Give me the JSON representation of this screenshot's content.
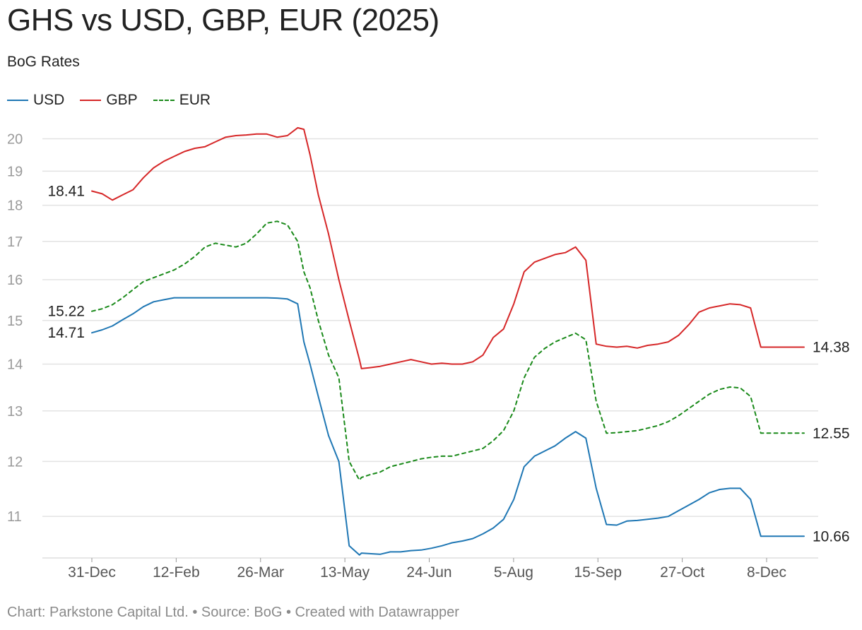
{
  "title": "GHS vs USD, GBP, EUR (2025)",
  "subtitle": "BoG Rates",
  "footer": "Chart: Parkstone Capital Ltd. • Source: BoG • Created with Datawrapper",
  "chart_data": {
    "type": "line",
    "title": "GHS vs USD, GBP, EUR (2025)",
    "subtitle": "BoG Rates",
    "xlabel": "",
    "ylabel": "",
    "y_scale": "log",
    "ylim": [
      10.3,
      20.6
    ],
    "y_ticks": [
      11,
      12,
      13,
      14,
      15,
      16,
      17,
      18,
      19,
      20
    ],
    "x_ticks": [
      "31-Dec",
      "12-Feb",
      "26-Mar",
      "13-May",
      "24-Jun",
      "5-Aug",
      "15-Sep",
      "27-Oct",
      "8-Dec"
    ],
    "grid": true,
    "legend_position": "top-left",
    "x_days_from_first": [
      0,
      5,
      10,
      15,
      20,
      25,
      30,
      35,
      40,
      45,
      50,
      55,
      60,
      65,
      70,
      75,
      80,
      85,
      90,
      95,
      100,
      103,
      106,
      110,
      115,
      120,
      125,
      130,
      131,
      135,
      140,
      145,
      150,
      155,
      160,
      165,
      170,
      175,
      180,
      185,
      190,
      195,
      200,
      205,
      210,
      215,
      220,
      225,
      230,
      235,
      240,
      245,
      250,
      255,
      260,
      265,
      270,
      275,
      280,
      285,
      290,
      295,
      300,
      305,
      310,
      315,
      320,
      325,
      330,
      335,
      340,
      345,
      346
    ],
    "series": [
      {
        "name": "USD",
        "color": "#1f77b4",
        "dash": false,
        "values": [
          14.71,
          14.78,
          14.87,
          15.02,
          15.16,
          15.33,
          15.45,
          15.5,
          15.55,
          15.55,
          15.55,
          15.55,
          15.55,
          15.55,
          15.55,
          15.55,
          15.55,
          15.55,
          15.54,
          15.52,
          15.4,
          14.5,
          14.0,
          13.3,
          12.5,
          12.0,
          10.5,
          10.35,
          10.38,
          10.37,
          10.36,
          10.4,
          10.4,
          10.42,
          10.43,
          10.46,
          10.5,
          10.55,
          10.58,
          10.62,
          10.7,
          10.8,
          10.95,
          11.3,
          11.9,
          12.1,
          12.2,
          12.3,
          12.45,
          12.58,
          12.45,
          11.5,
          10.86,
          10.85,
          10.92,
          10.93,
          10.95,
          10.97,
          11.0,
          11.1,
          11.2,
          11.3,
          11.42,
          11.48,
          11.5,
          11.5,
          11.3,
          10.66,
          10.66,
          10.66,
          10.66,
          10.66,
          10.66
        ]
      },
      {
        "name": "GBP",
        "color": "#d62728",
        "dash": false,
        "values": [
          18.41,
          18.33,
          18.15,
          18.3,
          18.45,
          18.8,
          19.1,
          19.3,
          19.45,
          19.6,
          19.7,
          19.75,
          19.9,
          20.05,
          20.1,
          20.12,
          20.15,
          20.15,
          20.05,
          20.1,
          20.35,
          20.3,
          19.5,
          18.3,
          17.2,
          16.0,
          15.0,
          14.1,
          13.9,
          13.92,
          13.95,
          14.0,
          14.05,
          14.1,
          14.05,
          14.0,
          14.02,
          14.0,
          14.0,
          14.05,
          14.2,
          14.6,
          14.8,
          15.4,
          16.2,
          16.45,
          16.55,
          16.65,
          16.7,
          16.85,
          16.5,
          14.45,
          14.4,
          14.38,
          14.4,
          14.36,
          14.42,
          14.45,
          14.5,
          14.65,
          14.9,
          15.2,
          15.3,
          15.35,
          15.4,
          15.38,
          15.3,
          14.38,
          14.38,
          14.38,
          14.38,
          14.38,
          14.38
        ]
      },
      {
        "name": "EUR",
        "color": "#1a8a1a",
        "dash": true,
        "values": [
          15.22,
          15.28,
          15.38,
          15.55,
          15.75,
          15.95,
          16.05,
          16.15,
          16.25,
          16.4,
          16.6,
          16.85,
          16.95,
          16.9,
          16.85,
          16.95,
          17.2,
          17.5,
          17.55,
          17.45,
          17.0,
          16.2,
          15.8,
          15.0,
          14.2,
          13.7,
          12.0,
          11.65,
          11.7,
          11.75,
          11.8,
          11.9,
          11.95,
          12.0,
          12.05,
          12.08,
          12.1,
          12.1,
          12.15,
          12.2,
          12.25,
          12.4,
          12.6,
          13.0,
          13.7,
          14.15,
          14.35,
          14.5,
          14.6,
          14.7,
          14.55,
          13.2,
          12.55,
          12.56,
          12.58,
          12.6,
          12.65,
          12.7,
          12.78,
          12.9,
          13.05,
          13.2,
          13.35,
          13.45,
          13.5,
          13.48,
          13.3,
          12.55,
          12.55,
          12.55,
          12.55,
          12.55,
          12.55
        ]
      }
    ],
    "start_labels": [
      {
        "series": "GBP",
        "text": "18.41"
      },
      {
        "series": "EUR",
        "text": "15.22"
      },
      {
        "series": "USD",
        "text": "14.71"
      }
    ],
    "end_labels": [
      {
        "series": "GBP",
        "text": "14.38"
      },
      {
        "series": "EUR",
        "text": "12.55"
      },
      {
        "series": "USD",
        "text": "10.66"
      }
    ]
  }
}
